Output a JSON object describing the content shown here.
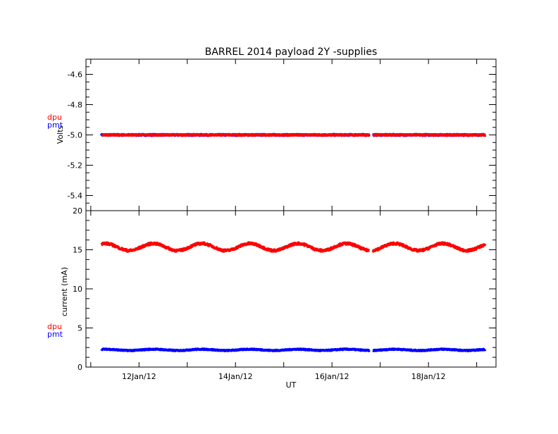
{
  "chart_data": {
    "title": "BARREL 2014 payload 2Y -supplies",
    "xlabel": "UT",
    "x_tick_labels": [
      "12Jan/12",
      "14Jan/12",
      "16Jan/12",
      "18Jan/12"
    ],
    "x_tick_days": [
      12,
      14,
      16,
      18
    ],
    "xlim": [
      10.9,
      19.4
    ],
    "data_x_range": [
      11.22,
      19.18
    ],
    "colors": {
      "dpu": "#ff0000",
      "pmt": "#0000ff"
    },
    "panels": [
      {
        "type": "line",
        "ylabel": "Volts",
        "ylim": [
          -5.5,
          -4.5
        ],
        "y_ticks": [
          -5.4,
          -5.2,
          -5.0,
          -4.8,
          -4.6
        ],
        "y_tick_labels": [
          "-5.4",
          "-5.2",
          "-5.0",
          "-4.8",
          "-4.6"
        ],
        "legend": [
          "dpu",
          "pmt"
        ],
        "series": [
          {
            "name": "pmt",
            "mean": -5.0,
            "amplitude": 0.0,
            "period_days": 1.0,
            "peak_day": 12.3,
            "noise": 0.004
          },
          {
            "name": "dpu",
            "mean": -5.0,
            "amplitude": 0.0,
            "period_days": 1.0,
            "peak_day": 12.3,
            "noise": 0.003
          }
        ]
      },
      {
        "type": "line",
        "ylabel": "current (mA)",
        "ylim": [
          0,
          20
        ],
        "y_ticks": [
          0,
          5,
          10,
          15,
          20
        ],
        "y_tick_labels": [
          "0",
          "5",
          "10",
          "15",
          "20"
        ],
        "legend": [
          "dpu",
          "pmt"
        ],
        "series": [
          {
            "name": "pmt",
            "mean": 2.2,
            "amplitude": 0.08,
            "period_days": 1.0,
            "peak_day": 12.3,
            "noise": 0.05
          },
          {
            "name": "dpu",
            "mean": 15.35,
            "amplitude": 0.45,
            "period_days": 1.0,
            "peak_day": 12.3,
            "noise": 0.12
          }
        ]
      }
    ]
  }
}
